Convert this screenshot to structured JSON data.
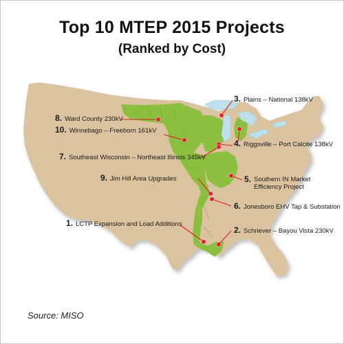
{
  "title": "Top 10 MTEP 2015 Projects",
  "subtitle": "(Ranked by Cost)",
  "source": "Source: MISO",
  "colors": {
    "land": "#dcc3a0",
    "miso_region": "#8cbf3f",
    "lakes": "#bfe0ea",
    "marker": "#e01f26"
  },
  "projects": [
    {
      "rank": "1.",
      "name": "LCTP Expansion and Load Additions"
    },
    {
      "rank": "2.",
      "name": "Schriever – Bayou Vista 230kV"
    },
    {
      "rank": "3.",
      "name": "Plains – National 138kV"
    },
    {
      "rank": "4.",
      "name": "Riggsville – Port Calcite 138kV"
    },
    {
      "rank": "5.",
      "name": "Southern IN Market\nEfficiency Project"
    },
    {
      "rank": "6.",
      "name": "Jonesboro EHV Tap & Substation"
    },
    {
      "rank": "7.",
      "name": "Southeast Wisconsin – Northeast Illinois 345kV"
    },
    {
      "rank": "8.",
      "name": "Ward County 230kV"
    },
    {
      "rank": "9.",
      "name": "Jim Hill Area Upgrades"
    },
    {
      "rank": "10.",
      "name": "Winnebago – Freeborn 161kV"
    }
  ]
}
